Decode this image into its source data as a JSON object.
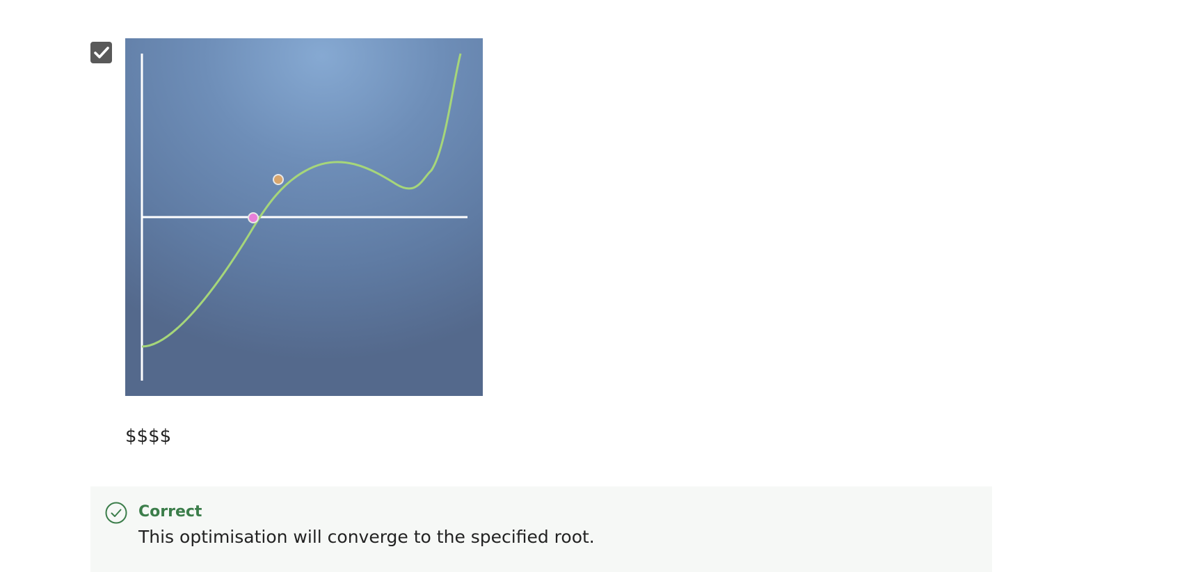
{
  "option": {
    "checked": true,
    "answer_label": "$$$$"
  },
  "plot": {
    "curve_color": "#a6d67a",
    "axis_color": "#ffffff",
    "root_point_color": "#e87fd9",
    "start_point_color": "#d8a56c"
  },
  "feedback": {
    "status": "Correct",
    "message": "This optimisation will converge to the specified root.",
    "status_color": "#3b7d4a"
  },
  "icons": {
    "checkbox": "checkmark-icon",
    "feedback": "check-circle-icon"
  }
}
